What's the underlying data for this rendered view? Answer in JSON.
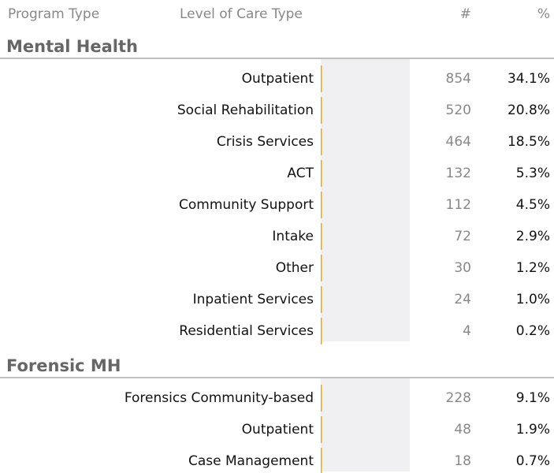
{
  "chart_data": {
    "type": "bar",
    "columns": [
      "Program Type",
      "Level of Care Type",
      "#",
      "%"
    ],
    "xlim": [
      0,
      1600
    ],
    "color": "#ffa500",
    "groups": [
      {
        "name": "Mental Health",
        "categories": [
          "Outpatient",
          "Social Rehabilitation",
          "Crisis Services",
          "ACT",
          "Community Support",
          "Intake",
          "Other",
          "Inpatient Services",
          "Residential Services"
        ],
        "values": [
          854,
          520,
          464,
          132,
          112,
          72,
          30,
          24,
          4
        ],
        "percents": [
          "34.1%",
          "20.8%",
          "18.5%",
          "5.3%",
          "4.5%",
          "2.9%",
          "1.2%",
          "1.0%",
          "0.2%"
        ]
      },
      {
        "name": "Forensic MH",
        "categories": [
          "Forensics Community-based",
          "Outpatient",
          "Case Management"
        ],
        "values": [
          228,
          48,
          18
        ],
        "percents": [
          "9.1%",
          "1.9%",
          "0.7%"
        ]
      }
    ]
  }
}
